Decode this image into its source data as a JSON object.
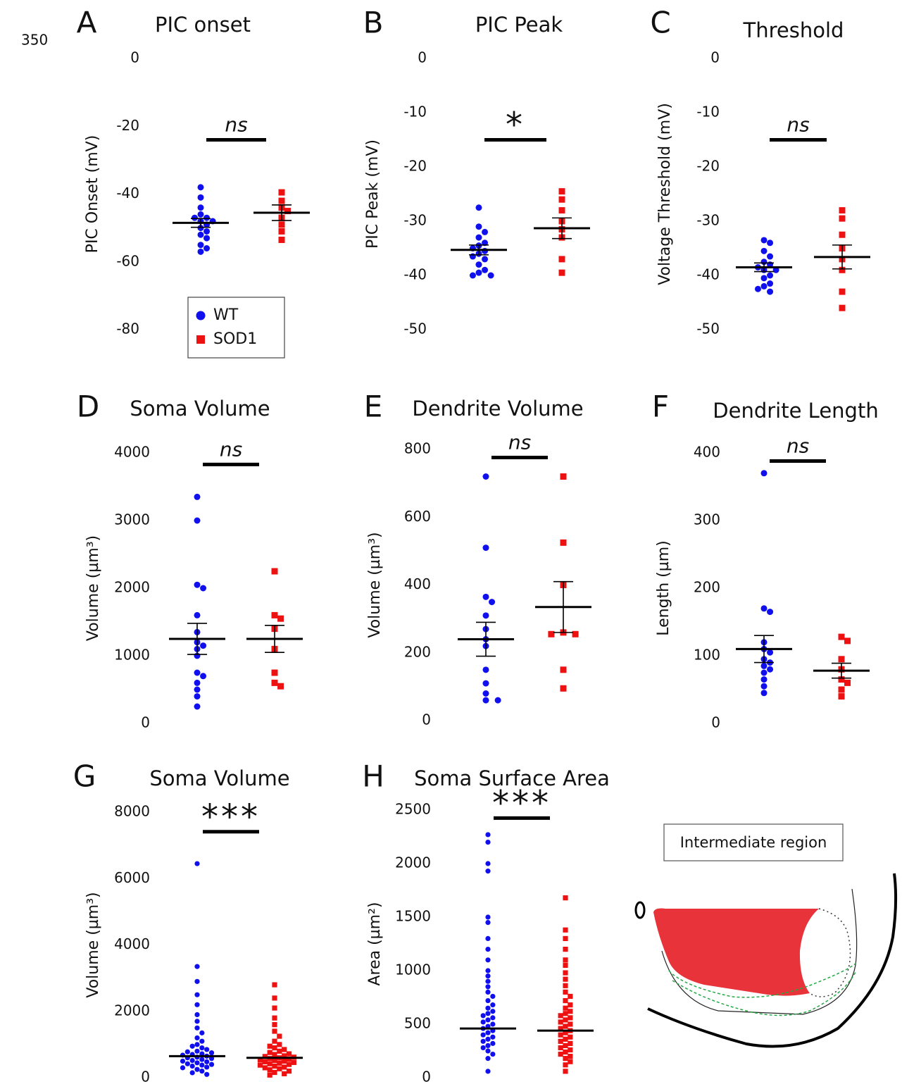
{
  "page_label": "350",
  "diagram": {
    "label": "Intermediate region"
  },
  "chart_data": [
    {
      "type": "dotplot",
      "panel": "A",
      "title": "PIC onset",
      "ylabel": "PIC Onset (mV)",
      "ylim": [
        -80,
        0
      ],
      "yticks": [
        0,
        -20,
        -40,
        -60,
        -80
      ],
      "significance": "ns",
      "significance_color": "#555555",
      "legend": true,
      "series": [
        {
          "name": "WT",
          "color": "#1010ee",
          "marker": "circle",
          "values": [
            -38,
            -41,
            -44,
            -46,
            -47,
            -47,
            -48,
            -48,
            -49,
            -50,
            -51,
            -52,
            -53,
            -55,
            -56,
            -57
          ],
          "mean": -48.5,
          "sem": 1.3
        },
        {
          "name": "SOD1",
          "color": "#ee1111",
          "marker": "square",
          "values": [
            -39.5,
            -42,
            -44,
            -45,
            -47,
            -49,
            -51,
            -53.5
          ],
          "mean": -45.5,
          "sem": 2.3
        }
      ]
    },
    {
      "type": "dotplot",
      "panel": "B",
      "title": "PIC Peak",
      "ylabel": "PIC Peak (mV)",
      "ylim": [
        -50,
        0
      ],
      "yticks": [
        0,
        -10,
        -20,
        -30,
        -40,
        -50
      ],
      "significance": "*",
      "significance_color": "#f5b800",
      "series": [
        {
          "color": "#1010ee",
          "marker": "circle",
          "values": [
            -27.5,
            -31,
            -32,
            -33,
            -34,
            -34.5,
            -35,
            -35.5,
            -36,
            -36.5,
            -37,
            -38,
            -39,
            -39.5,
            -40,
            -40
          ],
          "mean": -35.3,
          "sem": 0.9
        },
        {
          "color": "#ee1111",
          "marker": "square",
          "values": [
            -24.5,
            -26,
            -28,
            -30,
            -31.5,
            -33,
            -37,
            -39.5
          ],
          "mean": -31.3,
          "sem": 1.9
        }
      ]
    },
    {
      "type": "dotplot",
      "panel": "C",
      "title": "Threshold",
      "ylabel": "Voltage Threshold (mV)",
      "ylim": [
        -50,
        0
      ],
      "yticks": [
        0,
        -10,
        -20,
        -30,
        -40,
        -50
      ],
      "significance": "ns",
      "significance_color": "#555555",
      "series": [
        {
          "color": "#1010ee",
          "marker": "circle",
          "values": [
            -33.5,
            -34,
            -35.5,
            -36.5,
            -37.5,
            -38,
            -38.5,
            -39,
            -39,
            -40,
            -40.5,
            -41.5,
            -42,
            -42.5,
            -43
          ],
          "mean": -38.5,
          "sem": 0.8
        },
        {
          "color": "#ee1111",
          "marker": "square",
          "values": [
            -28,
            -29.5,
            -32.5,
            -35,
            -37,
            -39,
            -43,
            -46
          ],
          "mean": -36.6,
          "sem": 2.2
        }
      ]
    },
    {
      "type": "dotplot",
      "panel": "D",
      "title": "Soma Volume",
      "ylabel": "Volume (µm³)",
      "ylim": [
        0,
        4000
      ],
      "yticks": [
        0,
        1000,
        2000,
        3000,
        4000
      ],
      "significance": "ns",
      "significance_color": "#555555",
      "series": [
        {
          "color": "#1010ee",
          "marker": "circle",
          "values": [
            3350,
            3000,
            2050,
            2000,
            1600,
            1350,
            1200,
            1150,
            1100,
            1000,
            750,
            700,
            600,
            500,
            400,
            250
          ],
          "mean": 1250,
          "sem": 230
        },
        {
          "color": "#ee1111",
          "marker": "square",
          "values": [
            2250,
            1600,
            1550,
            1400,
            1100,
            750,
            600,
            550
          ],
          "mean": 1250,
          "sem": 200
        }
      ]
    },
    {
      "type": "dotplot",
      "panel": "E",
      "title": "Dendrite Volume",
      "ylabel": "Volume (µm³)",
      "ylim": [
        0,
        800
      ],
      "yticks": [
        0,
        200,
        400,
        600,
        800
      ],
      "significance": "ns",
      "significance_color": "#555555",
      "series": [
        {
          "color": "#1010ee",
          "marker": "circle",
          "values": [
            720,
            510,
            365,
            350,
            310,
            270,
            240,
            220,
            150,
            110,
            80,
            60,
            60
          ],
          "mean": 240,
          "sem": 50
        },
        {
          "color": "#ee1111",
          "marker": "square",
          "values": [
            720,
            525,
            400,
            260,
            255,
            255,
            150,
            95
          ],
          "mean": 335,
          "sem": 75
        }
      ]
    },
    {
      "type": "dotplot",
      "panel": "F",
      "title": "Dendrite Length",
      "ylabel": "Length (µm)",
      "ylim": [
        0,
        400
      ],
      "yticks": [
        0,
        100,
        200,
        300,
        400
      ],
      "significance": "ns",
      "significance_color": "#555555",
      "series": [
        {
          "color": "#1010ee",
          "marker": "circle",
          "values": [
            370,
            170,
            165,
            120,
            110,
            105,
            95,
            90,
            85,
            80,
            75,
            65,
            55,
            45
          ],
          "mean": 110,
          "sem": 20
        },
        {
          "color": "#ee1111",
          "marker": "square",
          "values": [
            128,
            122,
            95,
            80,
            65,
            60,
            50,
            40
          ],
          "mean": 78,
          "sem": 11
        }
      ]
    },
    {
      "type": "dotplot",
      "panel": "G",
      "title": "Soma Volume",
      "ylabel": "Volume (µm³)",
      "ylim": [
        0,
        8000
      ],
      "yticks": [
        0,
        2000,
        4000,
        6000,
        8000
      ],
      "significance": "***",
      "significance_color": "#f5b800",
      "series": [
        {
          "color": "#1010ee",
          "marker": "circle",
          "values": [
            6450,
            3350,
            2900,
            2500,
            2200,
            1900,
            1700,
            1500,
            1350,
            1200,
            1100,
            1000,
            950,
            900,
            850,
            800,
            780,
            750,
            720,
            700,
            680,
            650,
            620,
            600,
            580,
            550,
            520,
            500,
            480,
            450,
            420,
            400,
            380,
            350,
            320,
            300,
            250,
            200,
            150,
            100
          ],
          "mean": 650
        },
        {
          "color": "#ee1111",
          "marker": "square",
          "values": [
            2800,
            2400,
            2100,
            1800,
            1600,
            1400,
            1250,
            1100,
            1000,
            950,
            900,
            850,
            800,
            760,
            720,
            700,
            660,
            640,
            620,
            600,
            580,
            560,
            540,
            520,
            500,
            480,
            460,
            440,
            420,
            400,
            380,
            350,
            320,
            300,
            270,
            240,
            200,
            160,
            120,
            80
          ],
          "mean": 600
        }
      ]
    },
    {
      "type": "dotplot",
      "panel": "H",
      "title": "Soma Surface Area",
      "ylabel": "Area (µm²)",
      "ylim": [
        0,
        2500
      ],
      "yticks": [
        0,
        500,
        1000,
        1500,
        2000,
        2500
      ],
      "significance": "***",
      "significance_color": "#f5b800",
      "series": [
        {
          "color": "#1010ee",
          "marker": "circle",
          "values": [
            2270,
            2200,
            2000,
            1930,
            1500,
            1450,
            1300,
            1200,
            1100,
            1000,
            950,
            900,
            850,
            800,
            760,
            720,
            680,
            650,
            620,
            600,
            580,
            560,
            540,
            520,
            500,
            480,
            460,
            440,
            420,
            400,
            380,
            360,
            340,
            320,
            300,
            280,
            250,
            220,
            180,
            60
          ],
          "mean": 460
        },
        {
          "color": "#ee1111",
          "marker": "square",
          "values": [
            1680,
            1380,
            1300,
            1200,
            1100,
            1050,
            980,
            920,
            860,
            800,
            760,
            720,
            680,
            650,
            620,
            600,
            580,
            560,
            540,
            520,
            500,
            480,
            460,
            440,
            420,
            400,
            380,
            360,
            340,
            320,
            300,
            280,
            260,
            240,
            220,
            200,
            180,
            150,
            120,
            60
          ],
          "mean": 440
        }
      ]
    }
  ]
}
